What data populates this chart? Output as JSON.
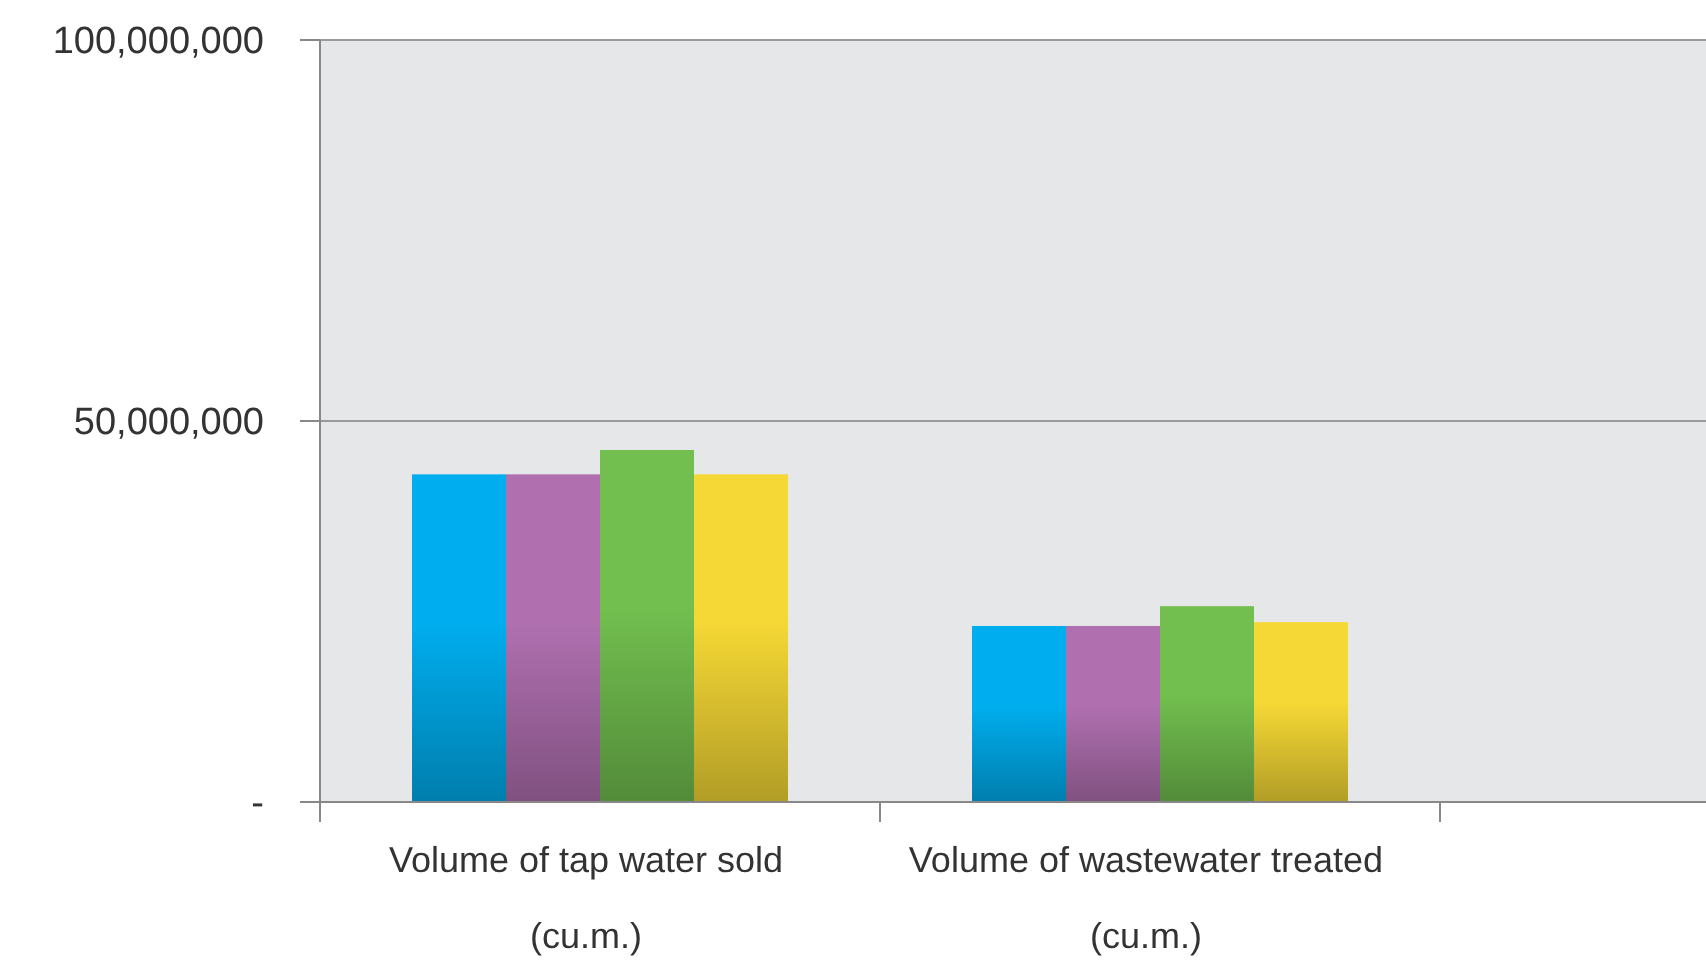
{
  "chart_data": {
    "type": "bar",
    "categories": [
      "Volume of tap water sold (cu.m.)",
      "Volume of wastewater treated (cu.m.)",
      null
    ],
    "series": [
      {
        "color": "#00aeef",
        "values": [
          43000000,
          23100000,
          null
        ]
      },
      {
        "color": "#b070b0",
        "values": [
          43000000,
          23100000,
          null
        ]
      },
      {
        "color": "#72bf4f",
        "values": [
          46200000,
          25700000,
          null
        ]
      },
      {
        "color": "#f5d835",
        "values": [
          43000000,
          23600000,
          null
        ]
      }
    ],
    "ylim": [
      0,
      100000000
    ],
    "yticks": [
      {
        "value": 0,
        "label": "-"
      },
      {
        "value": 50000000,
        "label": "50,000,000"
      },
      {
        "value": 100000000,
        "label": "100,000,000"
      }
    ],
    "grid": "y"
  }
}
